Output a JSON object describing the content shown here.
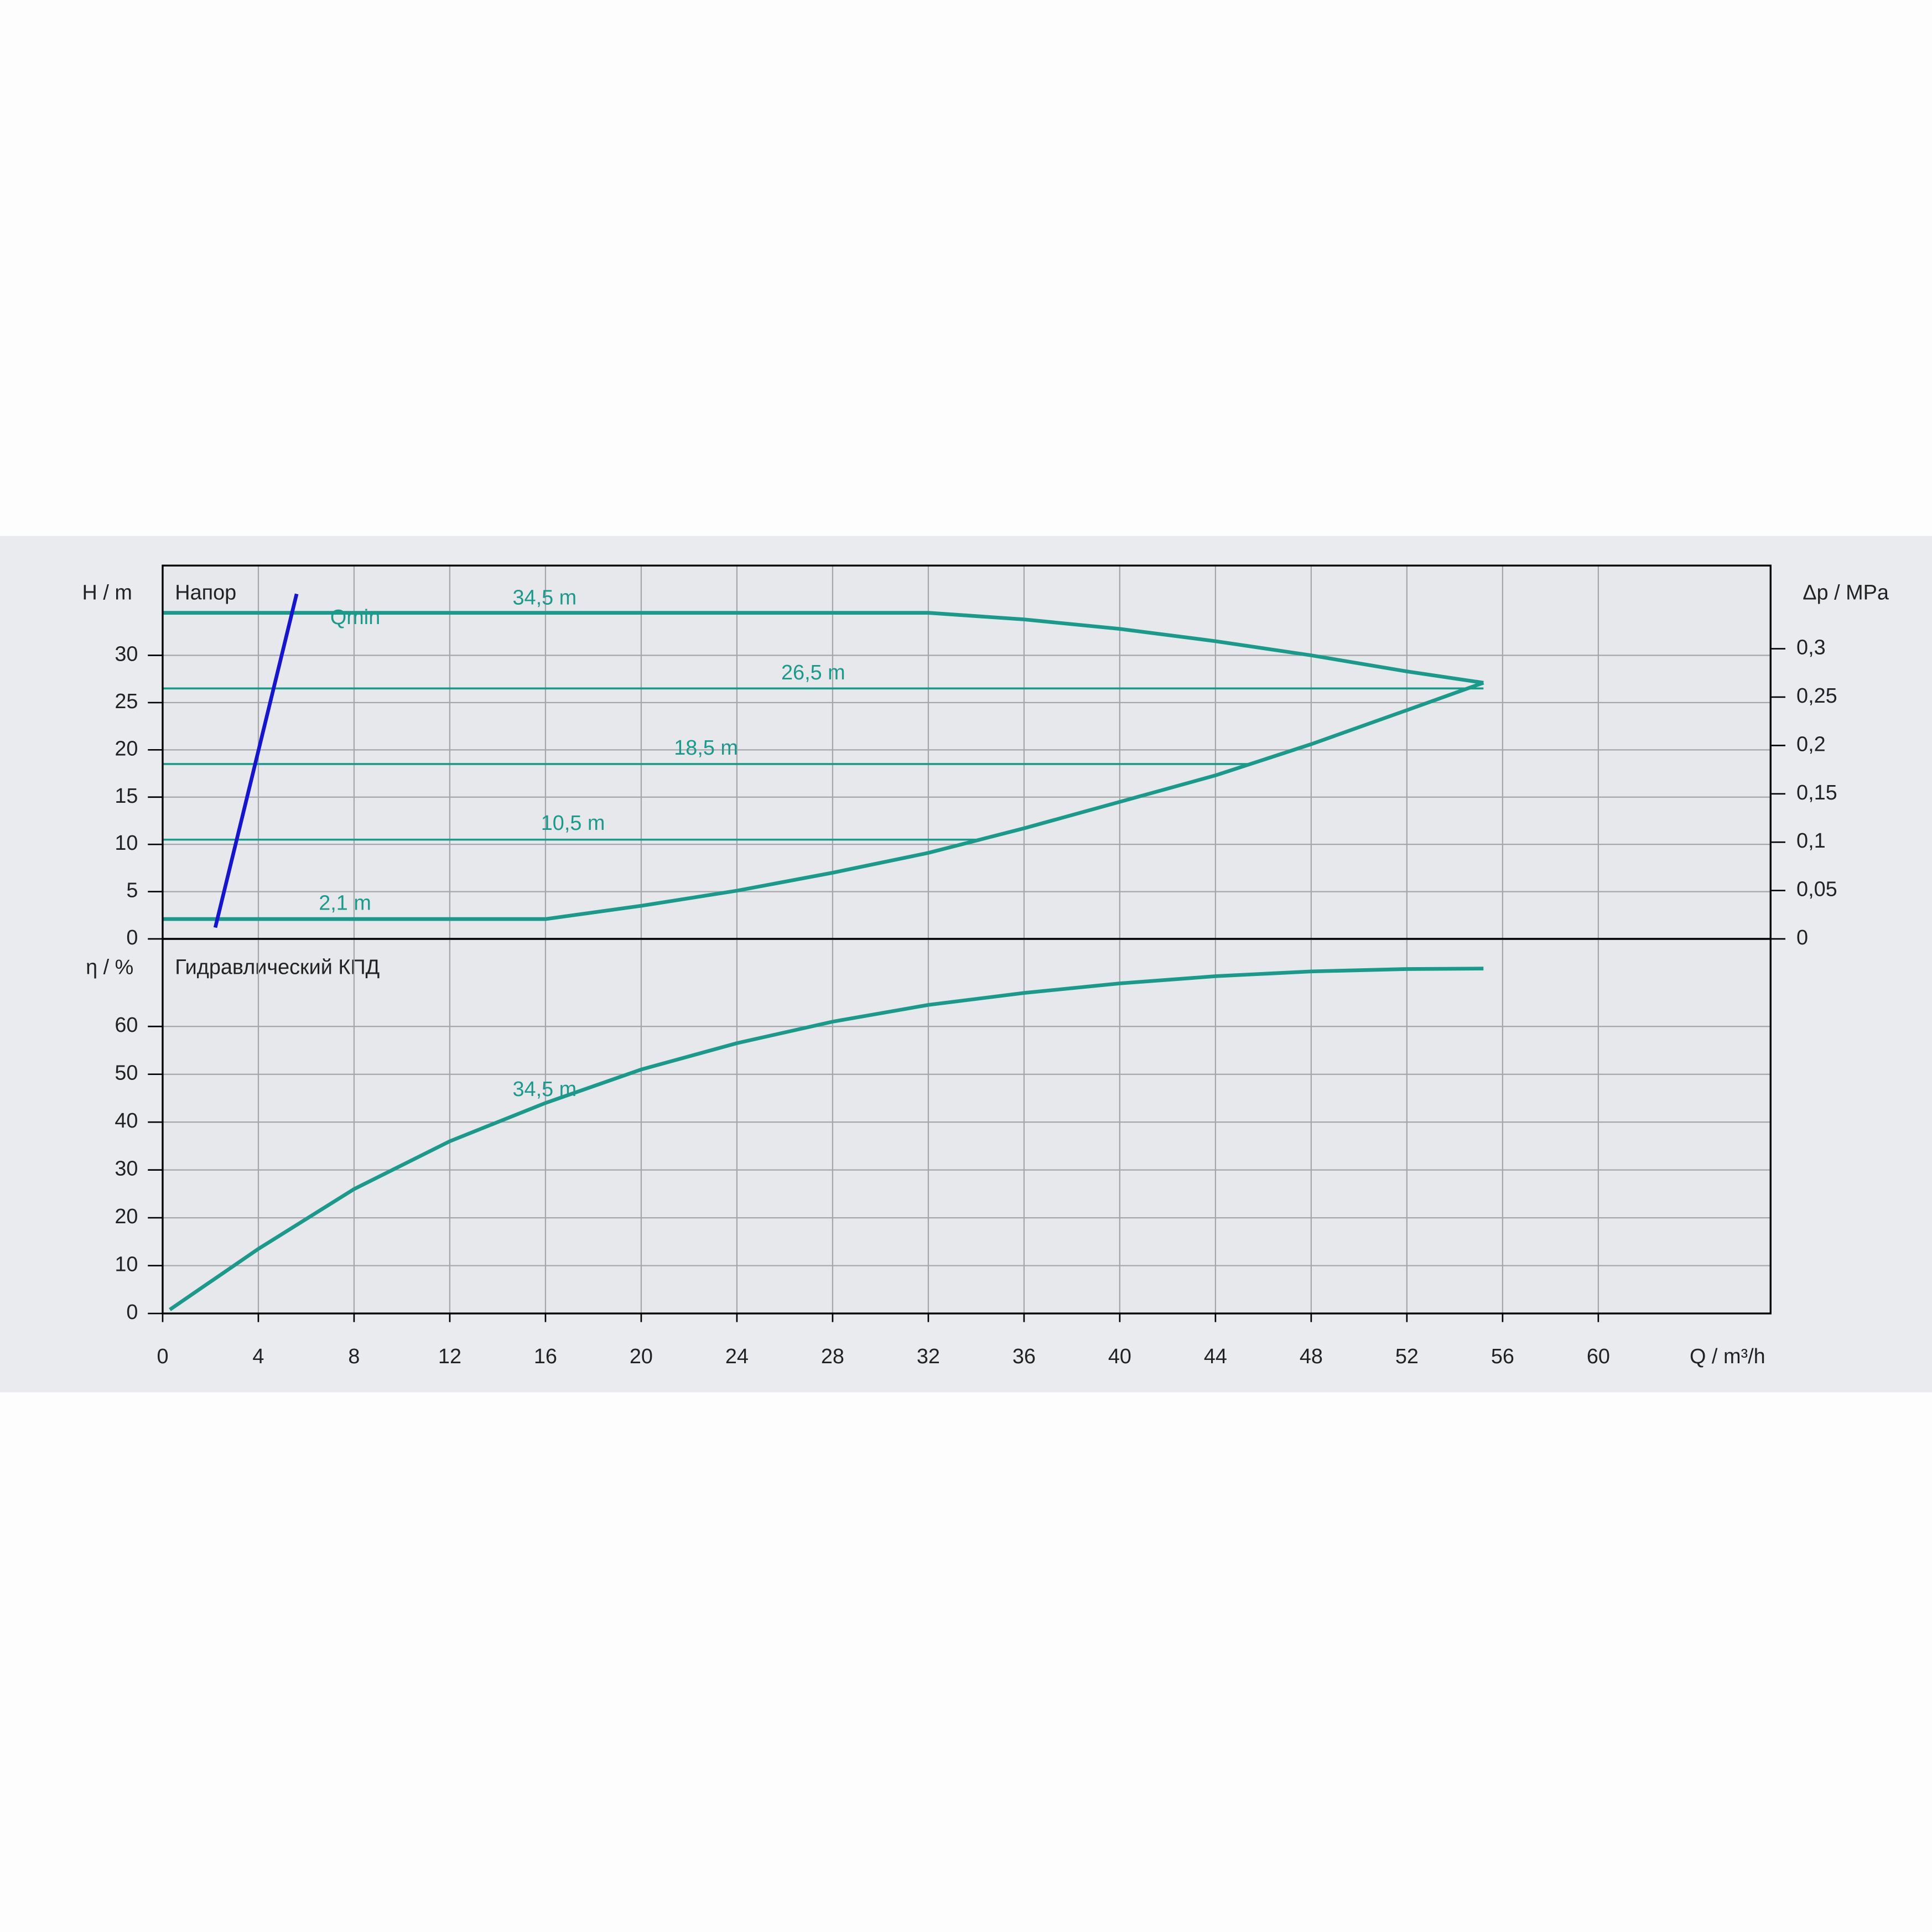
{
  "chart_data": [
    {
      "type": "line",
      "title": "Напор",
      "ylabel": "H / m",
      "y2label": "Δp / MPa",
      "xlim": [
        0,
        67.2
      ],
      "xticks": [
        0,
        4,
        8,
        12,
        16,
        20,
        24,
        28,
        32,
        36,
        40,
        44,
        48,
        52,
        56,
        60
      ],
      "ylim": [
        0,
        39.5
      ],
      "yticks": [
        0,
        5,
        10,
        15,
        20,
        25,
        30
      ],
      "y2lim": [
        0,
        0.386
      ],
      "y2ticks": [
        0,
        {
          "value": 0.05,
          "label": "0,05"
        },
        {
          "value": 0.1,
          "label": "0,1"
        },
        {
          "value": 0.15,
          "label": "0,15"
        },
        {
          "value": 0.2,
          "label": "0,2"
        },
        {
          "value": 0.25,
          "label": "0,25"
        },
        {
          "value": 0.3,
          "label": "0,3"
        }
      ],
      "grid": true,
      "series": [
        {
          "name": "34,5 m",
          "color": "#1a9a8a",
          "x": [
            0,
            32,
            36,
            40,
            44,
            48,
            52,
            55.2
          ],
          "values": [
            34.5,
            34.5,
            33.8,
            32.8,
            31.5,
            30,
            28.3,
            27.1
          ]
        },
        {
          "name": "2,1 m",
          "color": "#1a9a8a",
          "x": [
            0,
            16,
            20,
            24,
            28,
            32,
            36,
            40,
            44,
            48,
            52,
            55.2
          ],
          "values": [
            2.1,
            2.1,
            3.5,
            5.1,
            7,
            9.1,
            11.7,
            14.5,
            17.3,
            20.6,
            24.2,
            27.1
          ]
        },
        {
          "name": "26,5 m",
          "color": "#1a9a8a",
          "x": [
            0,
            55.2
          ],
          "values": [
            26.5,
            26.5
          ]
        },
        {
          "name": "18,5 m",
          "color": "#1a9a8a",
          "x": [
            0,
            45.4
          ],
          "values": [
            18.5,
            18.5
          ]
        },
        {
          "name": "10,5 m",
          "color": "#1a9a8a",
          "x": [
            0,
            34.2
          ],
          "values": [
            10.5,
            10.5
          ]
        },
        {
          "name": "Qmin",
          "color": "#1414d2",
          "x": [
            2.2,
            5.6
          ],
          "values": [
            1.2,
            36.5
          ]
        }
      ]
    },
    {
      "type": "line",
      "title": "Гидравлический КПД",
      "ylabel": "η / %",
      "xlabel": "Q / m³/h",
      "xlim": [
        0,
        67.2
      ],
      "xticks": [
        0,
        4,
        8,
        12,
        16,
        20,
        24,
        28,
        32,
        36,
        40,
        44,
        48,
        52,
        56,
        60
      ],
      "ylim": [
        0,
        78.3
      ],
      "yticks": [
        0,
        10,
        20,
        30,
        40,
        50,
        60
      ],
      "grid": true,
      "series": [
        {
          "name": "34,5 m",
          "color": "#1a9a8a",
          "x": [
            0.3,
            4,
            8,
            12,
            16,
            20,
            24,
            28,
            32,
            36,
            40,
            44,
            48,
            52,
            55.2
          ],
          "values": [
            0.8,
            13.5,
            26,
            36,
            44,
            51,
            56.5,
            61,
            64.5,
            67,
            69,
            70.5,
            71.5,
            72,
            72.1
          ]
        }
      ]
    }
  ]
}
